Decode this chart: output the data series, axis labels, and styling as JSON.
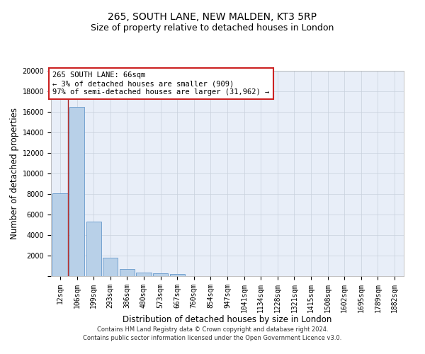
{
  "title1": "265, SOUTH LANE, NEW MALDEN, KT3 5RP",
  "title2": "Size of property relative to detached houses in London",
  "xlabel": "Distribution of detached houses by size in London",
  "ylabel": "Number of detached properties",
  "categories": [
    "12sqm",
    "106sqm",
    "199sqm",
    "293sqm",
    "386sqm",
    "480sqm",
    "573sqm",
    "667sqm",
    "760sqm",
    "854sqm",
    "947sqm",
    "1041sqm",
    "1134sqm",
    "1228sqm",
    "1321sqm",
    "1415sqm",
    "1508sqm",
    "1602sqm",
    "1695sqm",
    "1789sqm",
    "1882sqm"
  ],
  "values": [
    8100,
    16500,
    5300,
    1800,
    700,
    350,
    270,
    210,
    0,
    0,
    0,
    0,
    0,
    0,
    0,
    0,
    0,
    0,
    0,
    0,
    0
  ],
  "bar_color": "#b8d0e8",
  "bar_edge_color": "#6699cc",
  "vline_color": "#aa2222",
  "annotation_text": "265 SOUTH LANE: 66sqm\n← 3% of detached houses are smaller (909)\n97% of semi-detached houses are larger (31,962) →",
  "annotation_box_color": "white",
  "annotation_box_edge": "#cc2222",
  "ylim": [
    0,
    20000
  ],
  "yticks": [
    0,
    2000,
    4000,
    6000,
    8000,
    10000,
    12000,
    14000,
    16000,
    18000,
    20000
  ],
  "grid_color": "#c8d0dc",
  "background_color": "#e8eef8",
  "footer1": "Contains HM Land Registry data © Crown copyright and database right 2024.",
  "footer2": "Contains public sector information licensed under the Open Government Licence v3.0.",
  "title_fontsize": 10,
  "subtitle_fontsize": 9,
  "axis_label_fontsize": 8.5,
  "tick_fontsize": 7,
  "annotation_fontsize": 7.5,
  "footer_fontsize": 6
}
